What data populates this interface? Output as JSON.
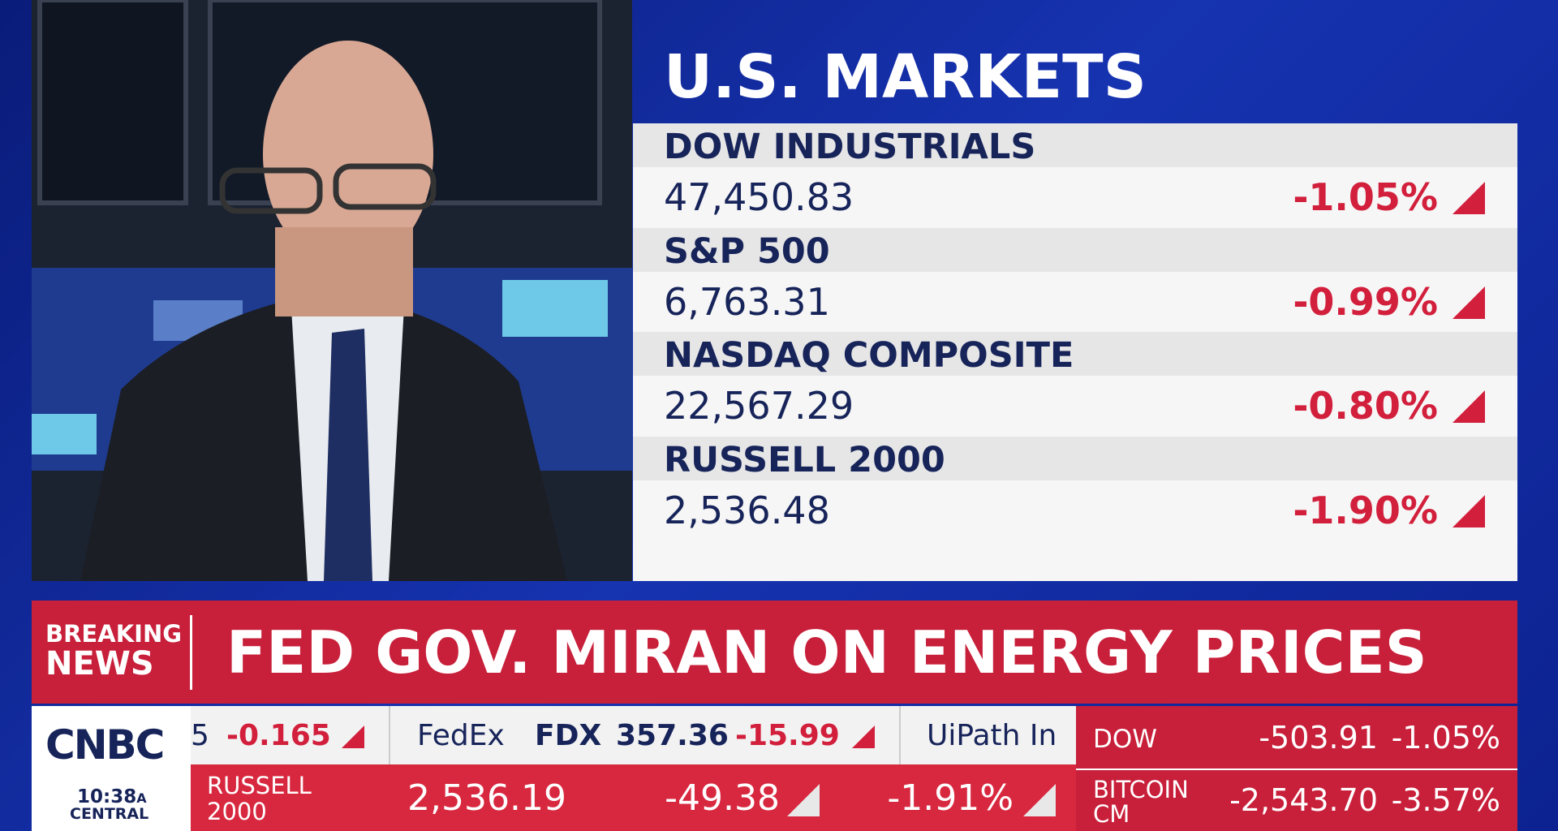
{
  "panel": {
    "title": "U.S. MARKETS",
    "indices": [
      {
        "name": "DOW INDUSTRIALS",
        "value": "47,450.83",
        "change": "-1.05%"
      },
      {
        "name": "S&P 500",
        "value": "6,763.31",
        "change": "-0.99%"
      },
      {
        "name": "NASDAQ COMPOSITE",
        "value": "22,567.29",
        "change": "-0.80%"
      },
      {
        "name": "RUSSELL 2000",
        "value": "2,536.48",
        "change": "-1.90%"
      }
    ]
  },
  "breaking": {
    "label": [
      "BREAKING",
      "NEWS"
    ],
    "headline": "FED GOV. MIRAN ON ENERGY PRICES"
  },
  "ticker": {
    "logo": "CNBC",
    "time": "10:38",
    "meridiem": "A",
    "zone": "CENTRAL",
    "stocks": [
      {
        "name": "5",
        "change": "-0.165"
      },
      {
        "name": "FedEx",
        "symbol": "FDX",
        "price": "357.36",
        "change": "-15.99"
      },
      {
        "name": "UiPath In"
      }
    ],
    "index_row": {
      "name": [
        "RUSSELL",
        "2000"
      ],
      "value": "2,536.19",
      "change": "-49.38",
      "percent": "-1.91%"
    },
    "summary": [
      {
        "name": [
          "DOW"
        ],
        "change": "-503.91",
        "percent": "-1.05%"
      },
      {
        "name": [
          "BITCOIN",
          "CM"
        ],
        "change": "-2,543.70",
        "percent": "-3.57%"
      }
    ]
  }
}
